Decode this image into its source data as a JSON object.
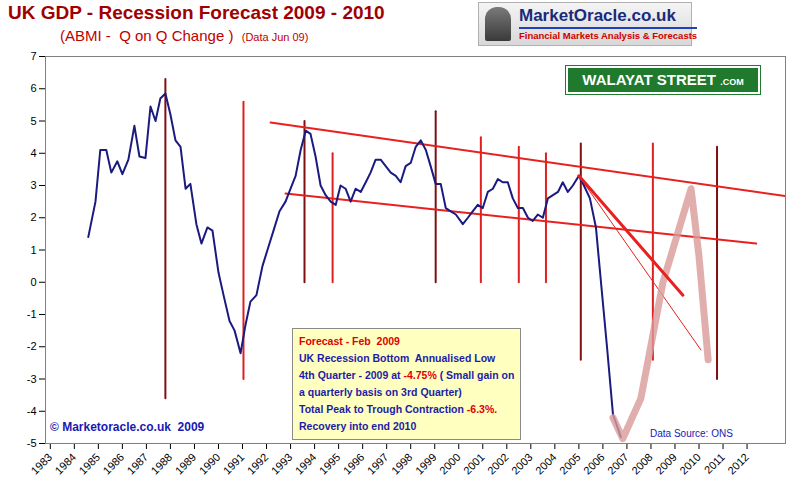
{
  "chart_data": {
    "type": "line",
    "title": "UK GDP - Recession Forecast 2009 - 2010",
    "subtitle": "(ABMI -  Q on Q Change )",
    "xlim": [
      1982.8,
      2013.6
    ],
    "xticks": [
      1983,
      1984,
      1985,
      1986,
      1987,
      1988,
      1989,
      1990,
      1991,
      1992,
      1993,
      1994,
      1995,
      1996,
      1997,
      1998,
      1999,
      2000,
      2001,
      2002,
      2003,
      2004,
      2005,
      2006,
      2007,
      2008,
      2009,
      2010,
      2011,
      2012
    ],
    "ylim": [
      -5,
      7
    ],
    "yticks": [
      -5,
      -4,
      -3,
      -2,
      -1,
      0,
      1,
      2,
      3,
      4,
      5,
      6,
      7
    ],
    "grid": false,
    "series": [
      {
        "type": "line",
        "color": "#7f1010",
        "line_style": "solid",
        "x": [
          1987.79,
          1987.79
        ],
        "values": [
          6.3,
          -3.6
        ]
      },
      {
        "type": "line",
        "color": "#e02020",
        "line_style": "solid",
        "x": [
          1991.04,
          1991.04
        ],
        "values": [
          5.6,
          -3.0
        ]
      },
      {
        "type": "line",
        "color": "#7f1010",
        "line_style": "solid",
        "x": [
          1993.58,
          1993.58
        ],
        "values": [
          5.0,
          0
        ]
      },
      {
        "type": "line",
        "color": "#e02020",
        "line_style": "solid",
        "x": [
          1994.75,
          1994.75
        ],
        "values": [
          4.0,
          0
        ]
      },
      {
        "type": "line",
        "color": "#7f1010",
        "line_style": "solid",
        "x": [
          1999.04,
          1999.04
        ],
        "values": [
          5.3,
          0
        ]
      },
      {
        "type": "line",
        "color": "#e02020",
        "line_style": "solid",
        "x": [
          2000.92,
          2000.92
        ],
        "values": [
          4.5,
          0
        ]
      },
      {
        "type": "line",
        "color": "#e02020",
        "line_style": "solid",
        "x": [
          2002.5,
          2002.5
        ],
        "values": [
          4.2,
          0
        ]
      },
      {
        "type": "line",
        "color": "#e02020",
        "line_style": "solid",
        "x": [
          2003.63,
          2003.63
        ],
        "values": [
          4.0,
          0
        ]
      },
      {
        "type": "line",
        "color": "#7f1010",
        "line_style": "solid",
        "x": [
          2005.08,
          2005.08
        ],
        "values": [
          4.3,
          -2.4
        ]
      },
      {
        "type": "line",
        "color": "#e02020",
        "line_style": "solid",
        "x": [
          2008.08,
          2008.08
        ],
        "values": [
          4.3,
          -2.4
        ]
      },
      {
        "type": "line",
        "color": "#7f1010",
        "line_style": "solid",
        "x": [
          2010.75,
          2010.75
        ],
        "values": [
          4.2,
          -3.0
        ]
      },
      {
        "type": "line",
        "color": "#e8201f",
        "line_style": "solid",
        "x": [
          1992.17,
          2013.6
        ],
        "values": [
          4.95,
          2.67
        ]
      },
      {
        "type": "line",
        "color": "#e8201f",
        "line_style": "solid",
        "x": [
          1992.79,
          2012.38
        ],
        "values": [
          2.75,
          1.2
        ]
      },
      {
        "type": "line",
        "color": "#e8201f",
        "line_style": "thin",
        "x": [
          2005.0,
          2010.08
        ],
        "values": [
          3.3,
          -2.1
        ]
      },
      {
        "type": "line",
        "color": "#1a1a80",
        "line_style": "solid",
        "x": [
          1984.58,
          1984.88,
          1985.08,
          1985.33,
          1985.54,
          1985.79,
          1986.0,
          1986.25,
          1986.5,
          1986.71,
          1986.96,
          1987.17,
          1987.38,
          1987.58,
          1987.79,
          1988.0,
          1988.21,
          1988.42,
          1988.63,
          1988.83,
          1989.08,
          1989.29,
          1989.54,
          1989.75,
          1990.0,
          1990.21,
          1990.46,
          1990.67,
          1990.92,
          1991.13,
          1991.33,
          1991.58,
          1991.83,
          1992.08,
          1992.29,
          1992.54,
          1992.79,
          1993.0,
          1993.21,
          1993.42,
          1993.63,
          1993.83,
          1994.04,
          1994.25,
          1994.46,
          1994.67,
          1994.88,
          1995.08,
          1995.29,
          1995.5,
          1995.71,
          1995.92,
          1996.13,
          1996.33,
          1996.54,
          1996.75,
          1996.96,
          1997.17,
          1997.38,
          1997.58,
          1997.79,
          1998.0,
          1998.21,
          1998.42,
          1998.63,
          1998.83,
          1999.04,
          1999.25,
          1999.46,
          1999.67,
          1999.88,
          2000.17,
          2000.38,
          2000.58,
          2000.79,
          2001.0,
          2001.21,
          2001.42,
          2001.63,
          2001.83,
          2002.04,
          2002.25,
          2002.46,
          2002.67,
          2002.88,
          2003.08,
          2003.29,
          2003.5,
          2003.71,
          2003.92,
          2004.13,
          2004.33,
          2004.54,
          2004.75,
          2005.0,
          2005.21,
          2005.46,
          2005.71,
          2005.92,
          2006.17,
          2006.42,
          2006.75
        ],
        "values": [
          1.4,
          2.5,
          4.1,
          4.1,
          3.4,
          3.75,
          3.35,
          3.8,
          4.85,
          3.9,
          3.85,
          5.45,
          5.0,
          5.7,
          5.85,
          5.2,
          4.4,
          4.2,
          2.9,
          3.05,
          1.8,
          1.2,
          1.7,
          1.6,
          0.3,
          -0.4,
          -1.2,
          -1.5,
          -2.2,
          -1.3,
          -0.6,
          -0.4,
          0.5,
          1.1,
          1.6,
          2.2,
          2.5,
          2.9,
          3.3,
          4.1,
          4.7,
          4.6,
          3.9,
          3.0,
          2.7,
          2.5,
          2.4,
          3.0,
          2.9,
          2.5,
          2.9,
          2.8,
          3.1,
          3.4,
          3.8,
          3.8,
          3.6,
          3.4,
          3.3,
          3.1,
          3.6,
          3.7,
          4.2,
          4.4,
          4.1,
          3.6,
          3.05,
          3.05,
          2.3,
          2.2,
          2.1,
          1.8,
          2.0,
          2.2,
          2.4,
          2.3,
          2.8,
          2.9,
          3.2,
          3.1,
          3.1,
          2.6,
          2.3,
          2.3,
          2.0,
          1.9,
          2.1,
          2.0,
          2.6,
          2.7,
          2.8,
          3.1,
          2.8,
          3.0,
          3.3,
          3.0,
          2.6,
          1.7,
          0.0,
          -2.0,
          -4.1,
          -4.8
        ]
      },
      {
        "type": "line",
        "color": "#d99a9a",
        "line_style": "heavy",
        "x": [
          2006.42,
          2006.83,
          2007.58,
          2008.5,
          2009.67,
          2010.0,
          2010.38
        ],
        "values": [
          -4.2,
          -4.85,
          -3.6,
          0,
          2.9,
          0.8,
          -2.4
        ]
      },
      {
        "type": "line",
        "color": "#e8201f",
        "line_style": "thick",
        "x": [
          2005.0,
          2009.33
        ],
        "values": [
          3.3,
          -0.4
        ]
      }
    ],
    "annotations": [
      {
        "text": "(Data Jun 09)"
      },
      {
        "text": "© Marketoracle.co.uk  2009"
      },
      {
        "text": "Data Source: ONS"
      }
    ],
    "forecast_box": {
      "lines": [
        [
          {
            "text": "Forecast - Feb  2009",
            "color": "#e00000"
          }
        ],
        [
          {
            "text": "UK Recession Bottom  Annualised Low",
            "color": "#1c1ca8"
          }
        ],
        [
          {
            "text": "4th Quarter - 2009 at ",
            "color": "#1c1ca8"
          },
          {
            "text": "-4.75%",
            "color": "#e00000"
          },
          {
            "text": " ( Small gain on",
            "color": "#1c1ca8"
          }
        ],
        [
          {
            "text": "a quarterly basis on 3rd Quarter)",
            "color": "#1c1ca8"
          }
        ],
        [
          {
            "text": "Total Peak to Trough Contraction ",
            "color": "#1c1ca8"
          },
          {
            "text": "-6.3%.",
            "color": "#e00000"
          }
        ],
        [
          {
            "text": "Recovery into end 2010",
            "color": "#1c1ca8"
          }
        ]
      ]
    },
    "logo": {
      "name": "MarketOracle.co.uk",
      "tagline": "Financial Markets Analysis & Forecasts",
      "badge": "WALAYAT STREET",
      "badge_suffix": ".COM"
    }
  }
}
